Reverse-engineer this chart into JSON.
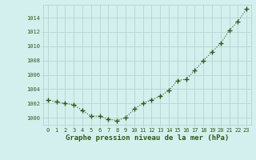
{
  "x": [
    0,
    1,
    2,
    3,
    4,
    5,
    6,
    7,
    8,
    9,
    10,
    11,
    12,
    13,
    14,
    15,
    16,
    17,
    18,
    19,
    20,
    21,
    22,
    23
  ],
  "y": [
    1002.5,
    1002.2,
    1002.0,
    1001.8,
    1001.0,
    1000.2,
    1000.2,
    999.8,
    999.6,
    1000.0,
    1001.2,
    1002.0,
    1002.5,
    1003.0,
    1003.8,
    1005.2,
    1005.4,
    1006.6,
    1008.0,
    1009.2,
    1010.4,
    1012.2,
    1013.5,
    1015.2
  ],
  "line_color": "#2d5a1b",
  "marker": "+",
  "marker_size": 4,
  "marker_linewidth": 1.0,
  "bg_color": "#d4f0ee",
  "grid_color": "#b8d4d0",
  "xlabel": "Graphe pression niveau de la mer (hPa)",
  "xlabel_fontsize": 6.5,
  "ytick_values": [
    1000,
    1002,
    1004,
    1006,
    1008,
    1010,
    1012,
    1014
  ],
  "ylim": [
    999.0,
    1015.8
  ],
  "xlim": [
    -0.5,
    23.5
  ],
  "xtick_labels": [
    "0",
    "1",
    "2",
    "3",
    "4",
    "5",
    "6",
    "7",
    "8",
    "9",
    "10",
    "11",
    "12",
    "13",
    "14",
    "15",
    "16",
    "17",
    "18",
    "19",
    "20",
    "21",
    "22",
    "23"
  ],
  "axis_color": "#2d5a1b",
  "linewidth": 0.8,
  "tick_fontsize": 5.0,
  "xlabel_fontweight": "bold"
}
